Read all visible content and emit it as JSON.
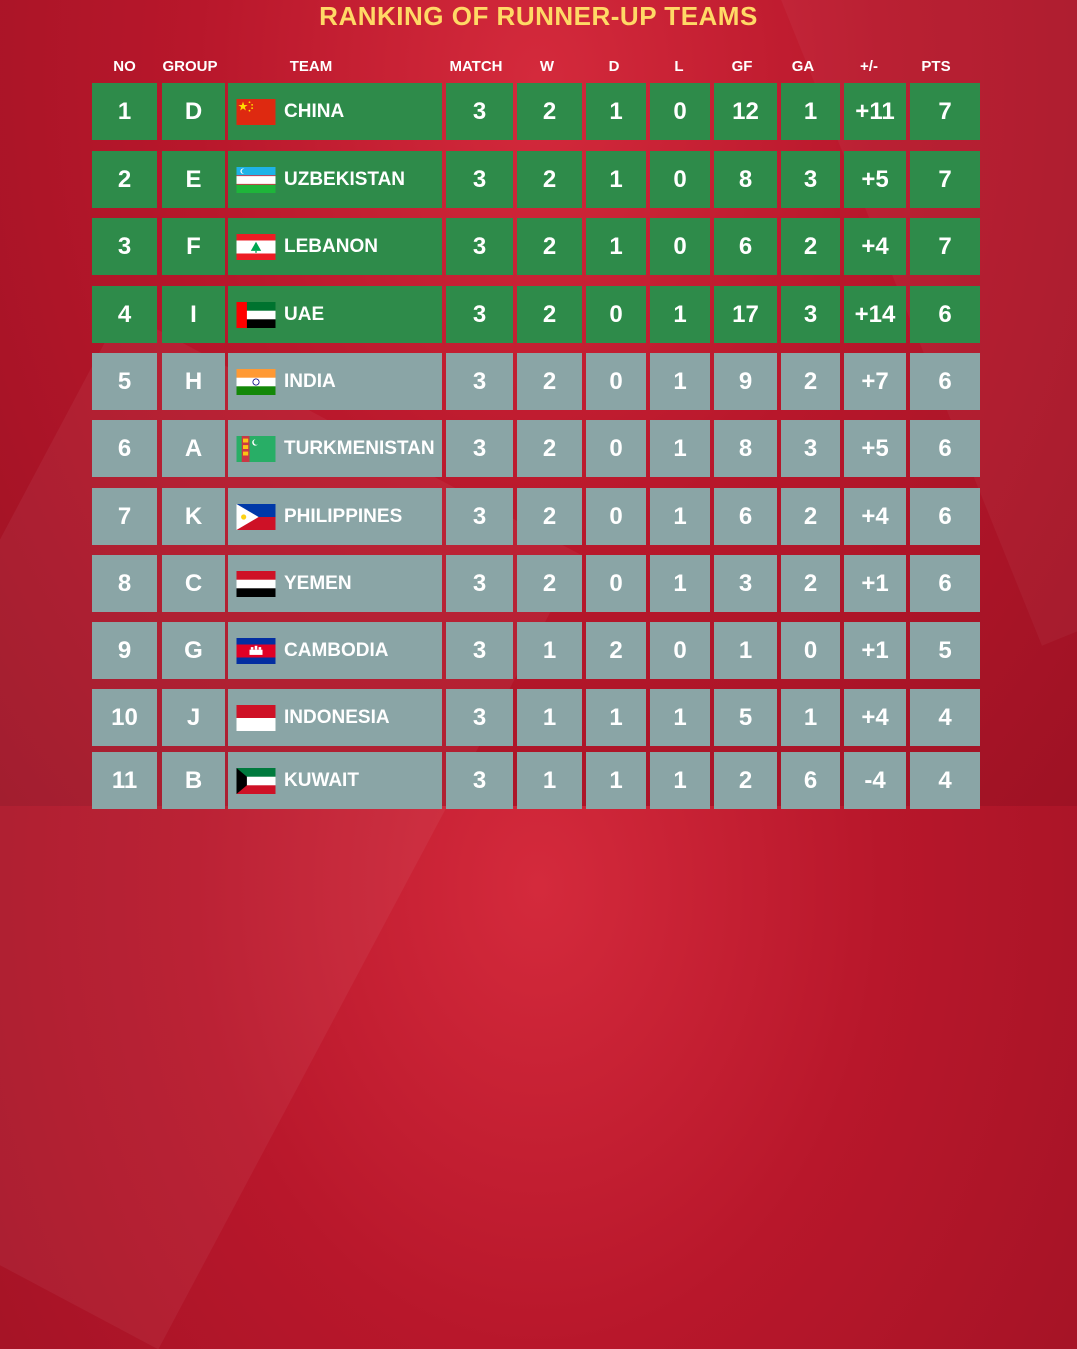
{
  "title": "RANKING OF RUNNER-UP TEAMS",
  "columns": {
    "no": "NO",
    "group": "GROUP",
    "team": "TEAM",
    "match": "MATCH",
    "w": "W",
    "d": "D",
    "l": "L",
    "gf": "GF",
    "ga": "GA",
    "diff": "+/-",
    "pts": "PTS"
  },
  "colors": {
    "qualified": "#2e8b4a",
    "eliminated": "#8aa5a6",
    "title": "#ffd966",
    "background": "#b8172b"
  },
  "rows": [
    {
      "no": "1",
      "group": "D",
      "team": "CHINA",
      "flag": "china-flag-icon",
      "match": "3",
      "w": "2",
      "d": "1",
      "l": "0",
      "gf": "12",
      "ga": "1",
      "diff": "+11",
      "pts": "7",
      "status": "qualified"
    },
    {
      "no": "2",
      "group": "E",
      "team": "UZBEKISTAN",
      "flag": "uzbekistan-flag-icon",
      "match": "3",
      "w": "2",
      "d": "1",
      "l": "0",
      "gf": "8",
      "ga": "3",
      "diff": "+5",
      "pts": "7",
      "status": "qualified"
    },
    {
      "no": "3",
      "group": "F",
      "team": "LEBANON",
      "flag": "lebanon-flag-icon",
      "match": "3",
      "w": "2",
      "d": "1",
      "l": "0",
      "gf": "6",
      "ga": "2",
      "diff": "+4",
      "pts": "7",
      "status": "qualified"
    },
    {
      "no": "4",
      "group": "I",
      "team": "UAE",
      "flag": "uae-flag-icon",
      "match": "3",
      "w": "2",
      "d": "0",
      "l": "1",
      "gf": "17",
      "ga": "3",
      "diff": "+14",
      "pts": "6",
      "status": "qualified"
    },
    {
      "no": "5",
      "group": "H",
      "team": "INDIA",
      "flag": "india-flag-icon",
      "match": "3",
      "w": "2",
      "d": "0",
      "l": "1",
      "gf": "9",
      "ga": "2",
      "diff": "+7",
      "pts": "6",
      "status": "eliminated"
    },
    {
      "no": "6",
      "group": "A",
      "team": "TURKMENISTAN",
      "flag": "turkmenistan-flag-icon",
      "match": "3",
      "w": "2",
      "d": "0",
      "l": "1",
      "gf": "8",
      "ga": "3",
      "diff": "+5",
      "pts": "6",
      "status": "eliminated"
    },
    {
      "no": "7",
      "group": "K",
      "team": "PHILIPPINES",
      "flag": "philippines-flag-icon",
      "match": "3",
      "w": "2",
      "d": "0",
      "l": "1",
      "gf": "6",
      "ga": "2",
      "diff": "+4",
      "pts": "6",
      "status": "eliminated"
    },
    {
      "no": "8",
      "group": "C",
      "team": "YEMEN",
      "flag": "yemen-flag-icon",
      "match": "3",
      "w": "2",
      "d": "0",
      "l": "1",
      "gf": "3",
      "ga": "2",
      "diff": "+1",
      "pts": "6",
      "status": "eliminated"
    },
    {
      "no": "9",
      "group": "G",
      "team": "CAMBODIA",
      "flag": "cambodia-flag-icon",
      "match": "3",
      "w": "1",
      "d": "2",
      "l": "0",
      "gf": "1",
      "ga": "0",
      "diff": "+1",
      "pts": "5",
      "status": "eliminated"
    },
    {
      "no": "10",
      "group": "J",
      "team": "INDONESIA",
      "flag": "indonesia-flag-icon",
      "match": "3",
      "w": "1",
      "d": "1",
      "l": "1",
      "gf": "5",
      "ga": "1",
      "diff": "+4",
      "pts": "4",
      "status": "eliminated"
    },
    {
      "no": "11",
      "group": "B",
      "team": "KUWAIT",
      "flag": "kuwait-flag-icon",
      "match": "3",
      "w": "1",
      "d": "1",
      "l": "1",
      "gf": "2",
      "ga": "6",
      "diff": "-4",
      "pts": "4",
      "status": "eliminated"
    }
  ]
}
